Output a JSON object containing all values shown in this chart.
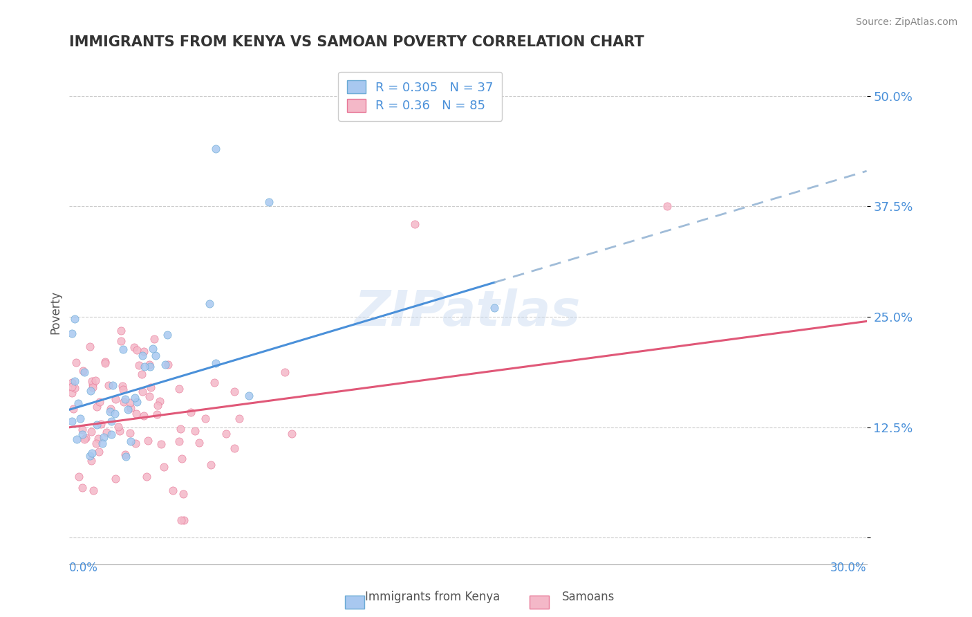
{
  "title": "IMMIGRANTS FROM KENYA VS SAMOAN POVERTY CORRELATION CHART",
  "source": "Source: ZipAtlas.com",
  "ylabel": "Poverty",
  "yticks": [
    0.0,
    0.125,
    0.25,
    0.375,
    0.5
  ],
  "ytick_labels": [
    "",
    "12.5%",
    "25.0%",
    "37.5%",
    "50.0%"
  ],
  "xmin": 0.0,
  "xmax": 0.3,
  "ymin": -0.03,
  "ymax": 0.54,
  "series": [
    {
      "name": "Immigrants from Kenya",
      "R": 0.305,
      "N": 37,
      "color": "#a8c8f0",
      "edge_color": "#6aaad4",
      "trend_color": "#4a90d9",
      "trend_dashed_color": "#a0bcd8",
      "trend_y_intercept": 0.145,
      "trend_slope": 0.9,
      "trend_solid_end": 0.16
    },
    {
      "name": "Samoans",
      "R": 0.36,
      "N": 85,
      "color": "#f4b8c8",
      "edge_color": "#e87898",
      "trend_color": "#e05878",
      "trend_y_intercept": 0.125,
      "trend_slope": 0.4,
      "trend_solid_end": 0.3
    }
  ],
  "watermark": "ZIPatlas",
  "background_color": "#ffffff",
  "title_color": "#333333",
  "axis_color": "#4a90d9",
  "grid_color": "#cccccc",
  "kenya_seed": 10,
  "samoan_seed": 20
}
